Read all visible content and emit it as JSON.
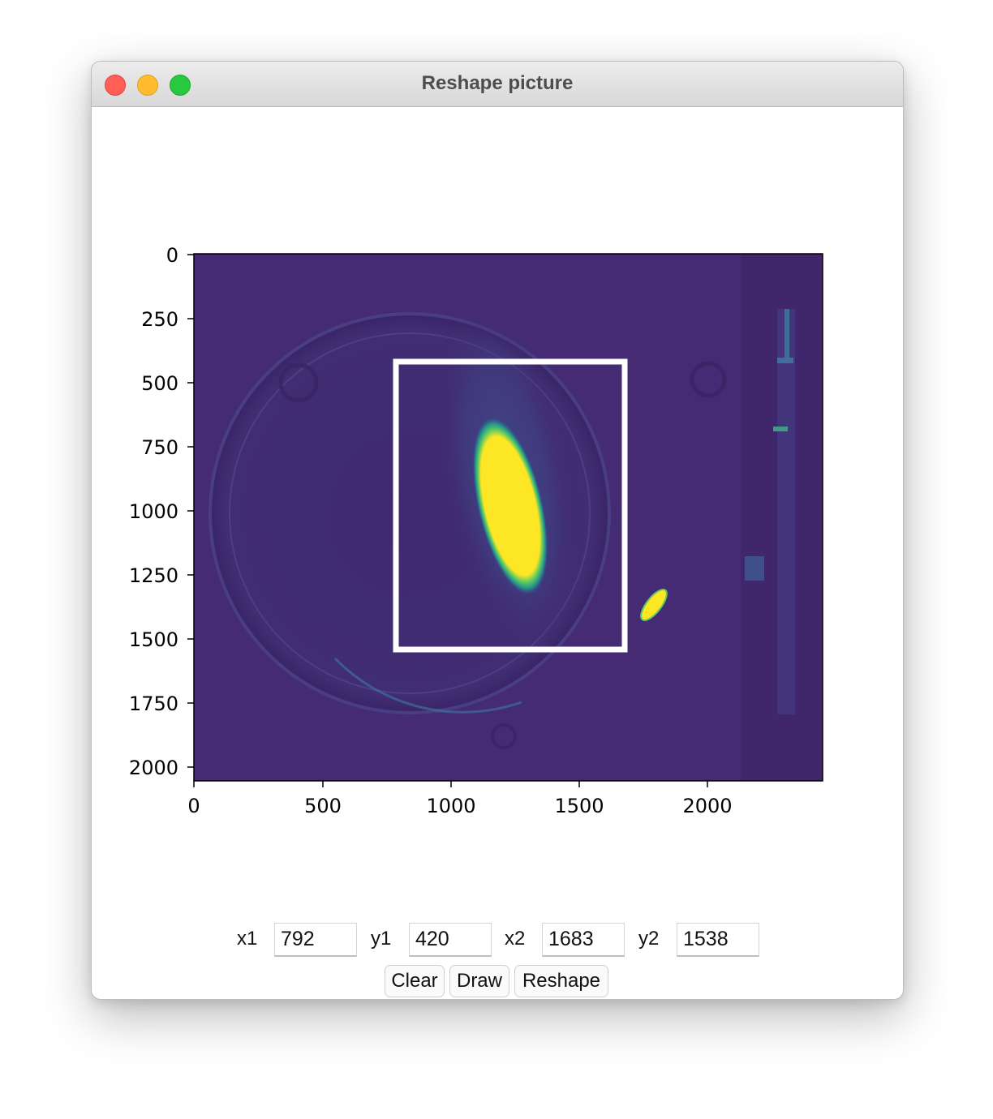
{
  "window": {
    "title": "Reshape picture"
  },
  "chart_data": {
    "type": "image",
    "description": "image display with selection rectangle",
    "x_ticks": [
      "0",
      "500",
      "1000",
      "1500",
      "2000"
    ],
    "y_ticks": [
      "0",
      "250",
      "500",
      "750",
      "1000",
      "1250",
      "1500",
      "1750",
      "2000"
    ],
    "xlim": [
      0,
      2448
    ],
    "ylim": [
      2050,
      0
    ],
    "colormap": "viridis",
    "selection": {
      "x1": 792,
      "y1": 420,
      "x2": 1683,
      "y2": 1538,
      "color": "#ffffff"
    }
  },
  "controls": {
    "x1": {
      "label": "x1",
      "value": "792"
    },
    "y1": {
      "label": "y1",
      "value": "420"
    },
    "x2": {
      "label": "x2",
      "value": "1683"
    },
    "y2": {
      "label": "y2",
      "value": "1538"
    }
  },
  "buttons": {
    "clear": "Clear",
    "draw": "Draw",
    "reshape": "Reshape"
  },
  "colors": {
    "background": "#40266a",
    "bright": "#fde725",
    "mid": "#21918c"
  }
}
